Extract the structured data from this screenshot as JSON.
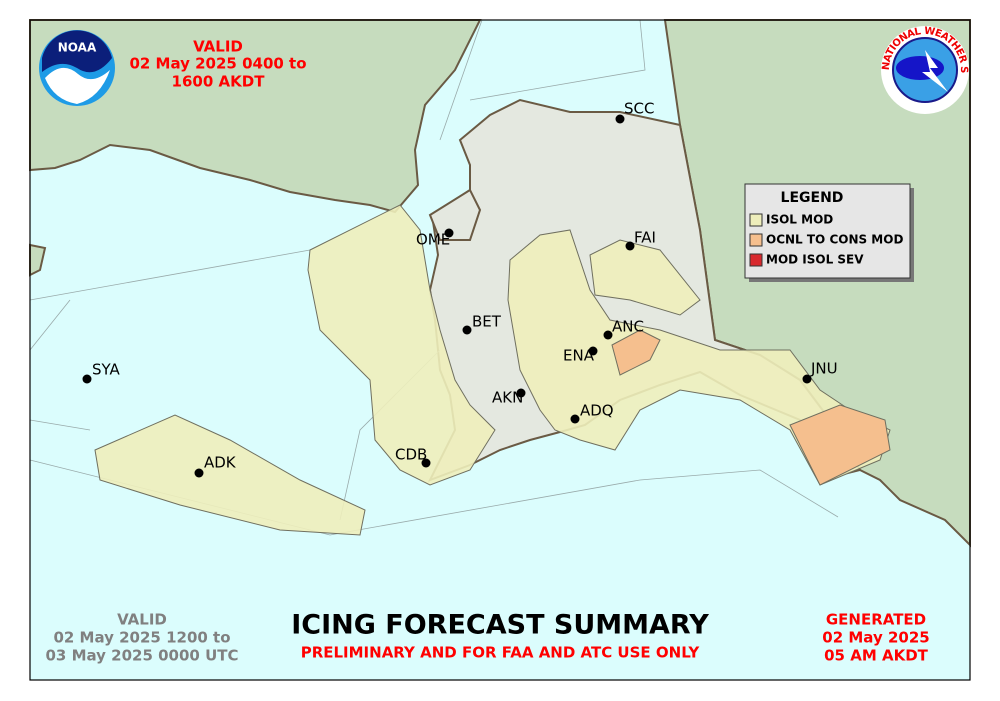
{
  "valid_local": {
    "label": "VALID",
    "lines": [
      "02 May 2025 0400 to",
      "1600 AKDT"
    ]
  },
  "valid_utc": {
    "label": "VALID",
    "lines": [
      "02 May 2025 1200 to",
      "03 May 2025 0000 UTC"
    ]
  },
  "title": "ICING FORECAST SUMMARY",
  "subtitle": "PRELIMINARY AND FOR FAA AND ATC USE ONLY",
  "generated": {
    "label": "GENERATED",
    "lines": [
      "02 May 2025",
      "05 AM AKDT"
    ]
  },
  "legend": {
    "title": "LEGEND",
    "items": [
      {
        "label": "ISOL MOD",
        "color": "#eeeebb"
      },
      {
        "label": "OCNL TO CONS MOD",
        "color": "#f5bf8e"
      },
      {
        "label": "MOD ISOL SEV",
        "color": "#d8282e"
      }
    ]
  },
  "logos": {
    "noaa": "NOAA",
    "nws": "NATIONAL WEATHER SERVICE"
  },
  "stations": [
    "SCC",
    "OME",
    "FAI",
    "BET",
    "ANC",
    "ENA",
    "JNU",
    "SYA",
    "AKN",
    "ADQ",
    "ADK",
    "CDB"
  ]
}
